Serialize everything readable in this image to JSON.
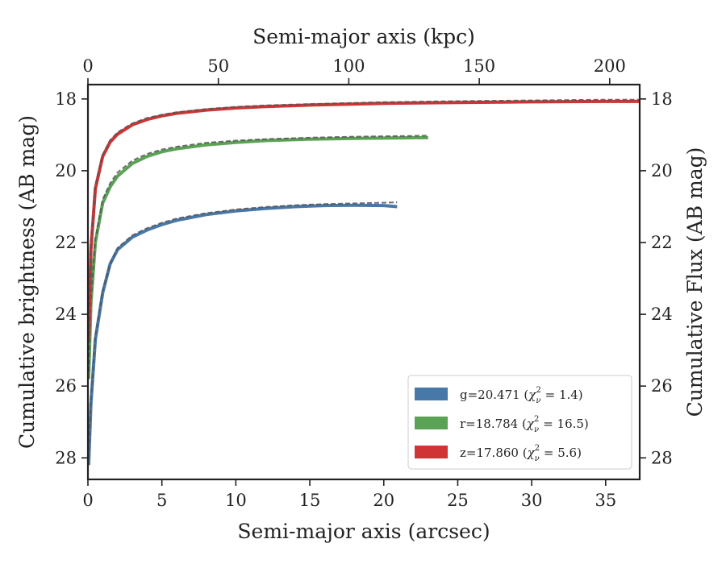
{
  "chart_data": {
    "type": "line",
    "x_bottom": {
      "label": "Semi-major axis (arcsec)",
      "range": [
        0,
        37.3
      ],
      "ticks": [
        0,
        5,
        10,
        15,
        20,
        25,
        30,
        35
      ],
      "tick_labels": [
        "0",
        "5",
        "10",
        "15",
        "20",
        "25",
        "30",
        "35"
      ]
    },
    "x_top": {
      "label": "Semi-major axis (kpc)",
      "range": [
        0,
        211.5
      ],
      "ticks": [
        0,
        50,
        100,
        150,
        200
      ],
      "tick_labels": [
        "0",
        "50",
        "100",
        "150",
        "200"
      ]
    },
    "y_left": {
      "label": "Cumulative brightness (AB mag)",
      "range": [
        28.6,
        17.6
      ],
      "inverted": true,
      "ticks": [
        18,
        20,
        22,
        24,
        26,
        28
      ],
      "tick_labels": [
        "18",
        "20",
        "22",
        "24",
        "26",
        "28"
      ]
    },
    "y_right": {
      "label": "Cumulative Flux (AB mag)",
      "range": [
        28.6,
        17.6
      ],
      "inverted": true,
      "ticks": [
        18,
        20,
        22,
        24,
        26,
        28
      ],
      "tick_labels": [
        "18",
        "20",
        "22",
        "24",
        "26",
        "28"
      ]
    },
    "legend_placement": "lower-right",
    "grid": false,
    "series": [
      {
        "name": "g=20.471",
        "chi": "1.4",
        "color": "#4878a8",
        "x": [
          0.05,
          0.2,
          0.5,
          1,
          1.5,
          2,
          3,
          4,
          5,
          6,
          8,
          10,
          12,
          14,
          16,
          18,
          20,
          20.9
        ],
        "y": [
          28.2,
          26.5,
          24.7,
          23.4,
          22.6,
          22.2,
          21.85,
          21.65,
          21.5,
          21.38,
          21.22,
          21.12,
          21.05,
          21.0,
          20.97,
          20.96,
          20.97,
          21.0
        ],
        "fit_x": [
          0.05,
          0.2,
          0.5,
          1,
          1.5,
          2,
          3,
          4,
          5,
          6,
          8,
          10,
          12,
          14,
          16,
          18,
          20,
          20.9
        ],
        "fit_y": [
          28.0,
          26.4,
          24.6,
          23.35,
          22.6,
          22.15,
          21.8,
          21.6,
          21.45,
          21.33,
          21.18,
          21.08,
          21.01,
          20.96,
          20.93,
          20.91,
          20.89,
          20.88
        ]
      },
      {
        "name": "r=18.784",
        "chi": "16.5",
        "color": "#5aa355",
        "x": [
          0.05,
          0.2,
          0.5,
          1,
          1.5,
          2,
          3,
          4,
          5,
          6,
          8,
          10,
          12,
          15,
          18,
          20,
          22,
          23
        ],
        "y": [
          25.8,
          23.7,
          22.0,
          20.9,
          20.45,
          20.15,
          19.8,
          19.6,
          19.47,
          19.39,
          19.28,
          19.21,
          19.16,
          19.12,
          19.1,
          19.09,
          19.08,
          19.08
        ],
        "fit_x": [
          0.05,
          0.2,
          0.5,
          1,
          1.5,
          2,
          3,
          4,
          5,
          6,
          8,
          10,
          12,
          15,
          18,
          20,
          22,
          23
        ],
        "fit_y": [
          25.6,
          23.6,
          21.9,
          20.8,
          20.35,
          20.05,
          19.72,
          19.53,
          19.41,
          19.33,
          19.22,
          19.16,
          19.12,
          19.08,
          19.05,
          19.04,
          19.03,
          19.02
        ]
      },
      {
        "name": "z=17.860",
        "chi": "5.6",
        "color": "#d03434",
        "x": [
          0.05,
          0.2,
          0.5,
          1,
          1.5,
          2,
          3,
          4,
          5,
          6,
          8,
          10,
          12,
          15,
          18,
          20,
          25,
          30,
          35,
          37.3
        ],
        "y": [
          24.7,
          22.2,
          20.5,
          19.6,
          19.2,
          18.98,
          18.72,
          18.57,
          18.47,
          18.4,
          18.31,
          18.25,
          18.21,
          18.17,
          18.14,
          18.12,
          18.1,
          18.08,
          18.07,
          18.07
        ],
        "fit_x": [
          0.05,
          0.2,
          0.5,
          1,
          1.5,
          2,
          3,
          4,
          5,
          6,
          8,
          10,
          12,
          15,
          18,
          20,
          25,
          30,
          35,
          37.3
        ],
        "fit_y": [
          24.6,
          22.1,
          20.4,
          19.55,
          19.15,
          18.93,
          18.68,
          18.53,
          18.44,
          18.37,
          18.28,
          18.22,
          18.18,
          18.14,
          18.11,
          18.09,
          18.06,
          18.04,
          18.02,
          18.02
        ]
      }
    ]
  }
}
